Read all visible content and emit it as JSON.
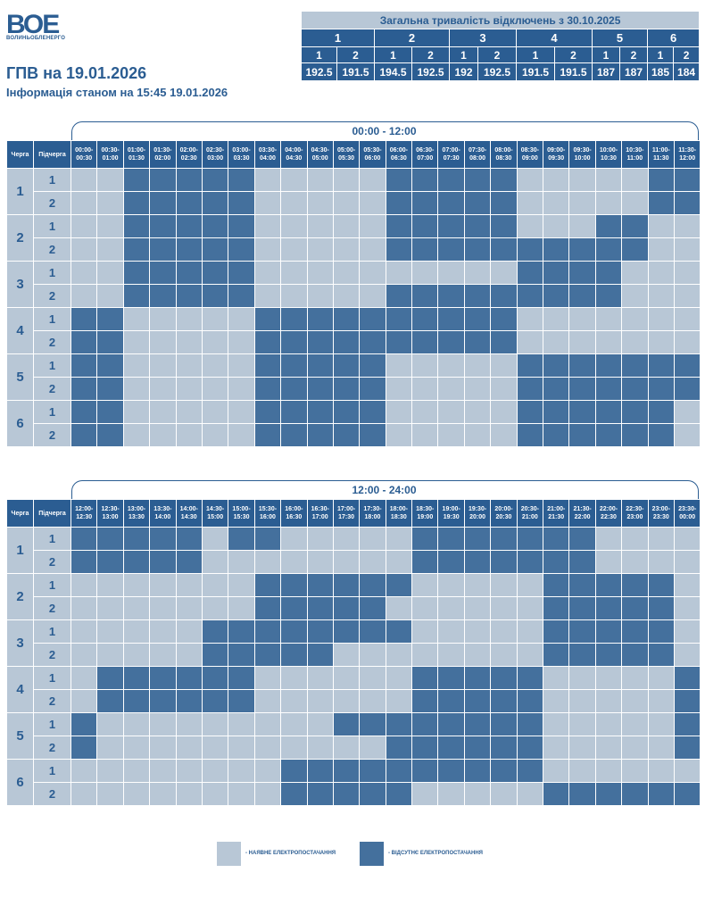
{
  "logo": {
    "mark": "ВОЕ",
    "text": "ВОЛИНЬОБЛЕНЕРГО"
  },
  "title": "ГПВ на 19.01.2026",
  "subtitle": "Інформація станом на 15:45 19.01.2026",
  "summary": {
    "title": "Загальна тривалість відключень з 30.10.2025",
    "queues": [
      "1",
      "2",
      "3",
      "4",
      "5",
      "6"
    ],
    "subqueues": [
      "1",
      "2",
      "1",
      "2",
      "1",
      "2",
      "1",
      "2",
      "1",
      "2",
      "1",
      "2"
    ],
    "values": [
      "192.5",
      "191.5",
      "194.5",
      "192.5",
      "192",
      "192.5",
      "191.5",
      "191.5",
      "187",
      "187",
      "185",
      "184"
    ]
  },
  "colors": {
    "available": "#b8c7d6",
    "unavailable": "#44709d",
    "header": "#2b5d92"
  },
  "grid_headers": {
    "queue": "Черга",
    "subqueue": "Підчерга"
  },
  "halves": [
    {
      "label": "00:00 - 12:00",
      "slots": [
        [
          "00:00-",
          "00:30"
        ],
        [
          "00:30-",
          "01:00"
        ],
        [
          "01:00-",
          "01:30"
        ],
        [
          "01:30-",
          "02:00"
        ],
        [
          "02:00-",
          "02:30"
        ],
        [
          "02:30-",
          "03:00"
        ],
        [
          "03:00-",
          "03:30"
        ],
        [
          "03:30-",
          "04:00"
        ],
        [
          "04:00-",
          "04:30"
        ],
        [
          "04:30-",
          "05:00"
        ],
        [
          "05:00-",
          "05:30"
        ],
        [
          "05:30-",
          "06:00"
        ],
        [
          "06:00-",
          "06:30"
        ],
        [
          "06:30-",
          "07:00"
        ],
        [
          "07:00-",
          "07:30"
        ],
        [
          "07:30-",
          "08:00"
        ],
        [
          "08:00-",
          "08:30"
        ],
        [
          "08:30-",
          "09:00"
        ],
        [
          "09:00-",
          "09:30"
        ],
        [
          "09:30-",
          "10:00"
        ],
        [
          "10:00-",
          "10:30"
        ],
        [
          "10:30-",
          "11:00"
        ],
        [
          "11:00-",
          "11:30"
        ],
        [
          "11:30-",
          "12:00"
        ]
      ],
      "rows": [
        {
          "queue": "1",
          "sub": "1",
          "outages": [
            0,
            0,
            1,
            1,
            1,
            1,
            1,
            0,
            0,
            0,
            0,
            0,
            1,
            1,
            1,
            1,
            1,
            0,
            0,
            0,
            0,
            0,
            1,
            1
          ]
        },
        {
          "queue": "1",
          "sub": "2",
          "outages": [
            0,
            0,
            1,
            1,
            1,
            1,
            1,
            0,
            0,
            0,
            0,
            0,
            1,
            1,
            1,
            1,
            1,
            0,
            0,
            0,
            0,
            0,
            1,
            1
          ]
        },
        {
          "queue": "2",
          "sub": "1",
          "outages": [
            0,
            0,
            1,
            1,
            1,
            1,
            1,
            0,
            0,
            0,
            0,
            0,
            1,
            1,
            1,
            1,
            1,
            0,
            0,
            0,
            1,
            1,
            0,
            0
          ]
        },
        {
          "queue": "2",
          "sub": "2",
          "outages": [
            0,
            0,
            1,
            1,
            1,
            1,
            1,
            0,
            0,
            0,
            0,
            0,
            1,
            1,
            1,
            1,
            1,
            1,
            1,
            1,
            1,
            1,
            0,
            0
          ]
        },
        {
          "queue": "3",
          "sub": "1",
          "outages": [
            0,
            0,
            1,
            1,
            1,
            1,
            1,
            0,
            0,
            0,
            0,
            0,
            0,
            0,
            0,
            0,
            0,
            1,
            1,
            1,
            1,
            0,
            0,
            0
          ]
        },
        {
          "queue": "3",
          "sub": "2",
          "outages": [
            0,
            0,
            1,
            1,
            1,
            1,
            1,
            0,
            0,
            0,
            0,
            0,
            1,
            1,
            1,
            1,
            1,
            1,
            1,
            1,
            1,
            0,
            0,
            0
          ]
        },
        {
          "queue": "4",
          "sub": "1",
          "outages": [
            1,
            1,
            0,
            0,
            0,
            0,
            0,
            1,
            1,
            1,
            1,
            1,
            1,
            1,
            1,
            1,
            1,
            0,
            0,
            0,
            0,
            0,
            0,
            0
          ]
        },
        {
          "queue": "4",
          "sub": "2",
          "outages": [
            1,
            1,
            0,
            0,
            0,
            0,
            0,
            1,
            1,
            1,
            1,
            1,
            1,
            1,
            1,
            1,
            1,
            0,
            0,
            0,
            0,
            0,
            0,
            0
          ]
        },
        {
          "queue": "5",
          "sub": "1",
          "outages": [
            1,
            1,
            0,
            0,
            0,
            0,
            0,
            1,
            1,
            1,
            1,
            1,
            0,
            0,
            0,
            0,
            0,
            1,
            1,
            1,
            1,
            1,
            1,
            1
          ]
        },
        {
          "queue": "5",
          "sub": "2",
          "outages": [
            1,
            1,
            0,
            0,
            0,
            0,
            0,
            1,
            1,
            1,
            1,
            1,
            0,
            0,
            0,
            0,
            0,
            1,
            1,
            1,
            1,
            1,
            1,
            1
          ]
        },
        {
          "queue": "6",
          "sub": "1",
          "outages": [
            1,
            1,
            0,
            0,
            0,
            0,
            0,
            1,
            1,
            1,
            1,
            1,
            0,
            0,
            0,
            0,
            0,
            1,
            1,
            1,
            1,
            1,
            1,
            0
          ]
        },
        {
          "queue": "6",
          "sub": "2",
          "outages": [
            1,
            1,
            0,
            0,
            0,
            0,
            0,
            1,
            1,
            1,
            1,
            1,
            0,
            0,
            0,
            0,
            0,
            1,
            1,
            1,
            1,
            1,
            1,
            0
          ]
        }
      ]
    },
    {
      "label": "12:00 - 24:00",
      "slots": [
        [
          "12:00-",
          "12:30"
        ],
        [
          "12:30-",
          "13:00"
        ],
        [
          "13:00-",
          "13:30"
        ],
        [
          "13:30-",
          "14:00"
        ],
        [
          "14:00-",
          "14:30"
        ],
        [
          "14:30-",
          "15:00"
        ],
        [
          "15:00-",
          "15:30"
        ],
        [
          "15:30-",
          "16:00"
        ],
        [
          "16:00-",
          "16:30"
        ],
        [
          "16:30-",
          "17:00"
        ],
        [
          "17:00-",
          "17:30"
        ],
        [
          "17:30-",
          "18:00"
        ],
        [
          "18:00-",
          "18:30"
        ],
        [
          "18:30-",
          "19:00"
        ],
        [
          "19:00-",
          "19:30"
        ],
        [
          "19:30-",
          "20:00"
        ],
        [
          "20:00-",
          "20:30"
        ],
        [
          "20:30-",
          "21:00"
        ],
        [
          "21:00-",
          "21:30"
        ],
        [
          "21:30-",
          "22:00"
        ],
        [
          "22:00-",
          "22:30"
        ],
        [
          "22:30-",
          "23:00"
        ],
        [
          "23:00-",
          "23:30"
        ],
        [
          "23:30-",
          "00:00"
        ]
      ],
      "rows": [
        {
          "queue": "1",
          "sub": "1",
          "outages": [
            1,
            1,
            1,
            1,
            1,
            0,
            1,
            1,
            0,
            0,
            0,
            0,
            0,
            1,
            1,
            1,
            1,
            1,
            1,
            1,
            0,
            0,
            0,
            0
          ]
        },
        {
          "queue": "1",
          "sub": "2",
          "outages": [
            1,
            1,
            1,
            1,
            1,
            0,
            0,
            0,
            0,
            0,
            0,
            0,
            0,
            1,
            1,
            1,
            1,
            1,
            1,
            1,
            0,
            0,
            0,
            0
          ]
        },
        {
          "queue": "2",
          "sub": "1",
          "outages": [
            0,
            0,
            0,
            0,
            0,
            0,
            0,
            1,
            1,
            1,
            1,
            1,
            1,
            0,
            0,
            0,
            0,
            0,
            1,
            1,
            1,
            1,
            1,
            0
          ]
        },
        {
          "queue": "2",
          "sub": "2",
          "outages": [
            0,
            0,
            0,
            0,
            0,
            0,
            0,
            1,
            1,
            1,
            1,
            1,
            0,
            0,
            0,
            0,
            0,
            0,
            1,
            1,
            1,
            1,
            1,
            0
          ]
        },
        {
          "queue": "3",
          "sub": "1",
          "outages": [
            0,
            0,
            0,
            0,
            0,
            1,
            1,
            1,
            1,
            1,
            1,
            1,
            1,
            0,
            0,
            0,
            0,
            0,
            1,
            1,
            1,
            1,
            1,
            0
          ]
        },
        {
          "queue": "3",
          "sub": "2",
          "outages": [
            0,
            0,
            0,
            0,
            0,
            1,
            1,
            1,
            1,
            1,
            0,
            0,
            0,
            0,
            0,
            0,
            0,
            0,
            1,
            1,
            1,
            1,
            1,
            0
          ]
        },
        {
          "queue": "4",
          "sub": "1",
          "outages": [
            0,
            1,
            1,
            1,
            1,
            1,
            1,
            0,
            0,
            0,
            0,
            0,
            0,
            1,
            1,
            1,
            1,
            1,
            0,
            0,
            0,
            0,
            0,
            1
          ]
        },
        {
          "queue": "4",
          "sub": "2",
          "outages": [
            0,
            1,
            1,
            1,
            1,
            1,
            1,
            0,
            0,
            0,
            0,
            0,
            0,
            1,
            1,
            1,
            1,
            1,
            0,
            0,
            0,
            0,
            0,
            1
          ]
        },
        {
          "queue": "5",
          "sub": "1",
          "outages": [
            1,
            0,
            0,
            0,
            0,
            0,
            0,
            0,
            0,
            0,
            1,
            1,
            1,
            1,
            1,
            1,
            1,
            1,
            0,
            0,
            0,
            0,
            0,
            1
          ]
        },
        {
          "queue": "5",
          "sub": "2",
          "outages": [
            1,
            0,
            0,
            0,
            0,
            0,
            0,
            0,
            0,
            0,
            0,
            0,
            1,
            1,
            1,
            1,
            1,
            1,
            0,
            0,
            0,
            0,
            0,
            1
          ]
        },
        {
          "queue": "6",
          "sub": "1",
          "outages": [
            0,
            0,
            0,
            0,
            0,
            0,
            0,
            0,
            1,
            1,
            1,
            1,
            1,
            1,
            1,
            1,
            1,
            1,
            0,
            0,
            0,
            0,
            0,
            0
          ]
        },
        {
          "queue": "6",
          "sub": "2",
          "outages": [
            0,
            0,
            0,
            0,
            0,
            0,
            0,
            0,
            1,
            1,
            1,
            1,
            1,
            0,
            0,
            0,
            0,
            0,
            1,
            1,
            1,
            1,
            1,
            1
          ]
        }
      ]
    }
  ],
  "legend": {
    "available": "- НАЯВНЕ ЕЛЕКТРОПОСТАЧАННЯ",
    "unavailable": "- ВІДСУТНЄ ЕЛЕКТРОПОСТАЧАННЯ"
  }
}
